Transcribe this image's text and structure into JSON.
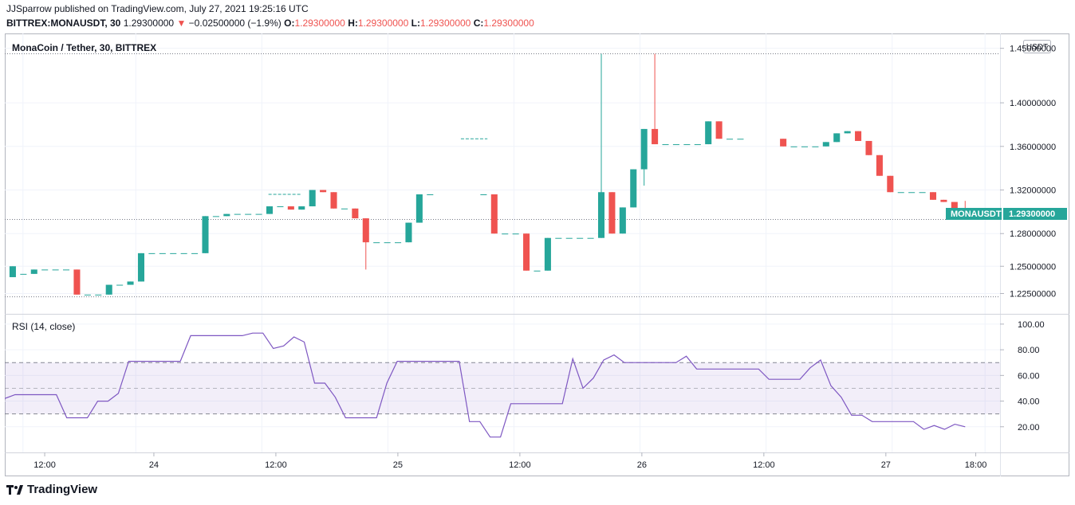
{
  "header": {
    "publisher_line": "JJSparrow published on TradingView.com, July 27, 2021 19:25:16 UTC",
    "symbol": "BITTREX:MONAUSDT, 30",
    "last": "1.29300000",
    "change_arrow": "▼",
    "change": "−0.02500000 (−1.9%)",
    "o_label": "O:",
    "o_value": "1.29300000",
    "h_label": "H:",
    "h_value": "1.29300000",
    "l_label": "L:",
    "l_value": "1.29300000",
    "c_label": "C:",
    "c_value": "1.29300000"
  },
  "chart_data": {
    "type": "candlestick",
    "title": "MonaCoin / Tether, 30, BITTREX",
    "currency": "USDT",
    "price_ticks": [
      "1.45000000",
      "1.40000000",
      "1.36000000",
      "1.32000000",
      "1.28000000",
      "1.25000000",
      "1.22500000"
    ],
    "price_tick_values": [
      1.45,
      1.4,
      1.36,
      1.32,
      1.28,
      1.25,
      1.225
    ],
    "price_range": [
      1.21,
      1.46
    ],
    "last_price_label": "MONAUSDT",
    "last_price": "1.29300000",
    "last_price_value": 1.293,
    "dotted_levels": [
      1.445,
      1.293,
      1.222
    ],
    "time_labels": [
      "12:00",
      "24",
      "12:00",
      "25",
      "12:00",
      "26",
      "12:00",
      "27",
      "18:00"
    ],
    "time_label_bars": [
      2,
      19,
      38,
      57,
      76,
      95,
      114,
      133,
      147
    ],
    "bars_total": 150,
    "candles": [
      {
        "i": 0,
        "o": 1.24,
        "c": 1.25,
        "h": 1.25,
        "l": 1.24
      },
      {
        "i": 1,
        "o": 1.243,
        "c": 1.243,
        "h": 1.243,
        "l": 1.243
      },
      {
        "i": 2,
        "o": 1.243,
        "c": 1.247,
        "h": 1.247,
        "l": 1.243
      },
      {
        "i": 3,
        "o": 1.247,
        "c": 1.247,
        "h": 1.247,
        "l": 1.247
      },
      {
        "i": 4,
        "o": 1.247,
        "c": 1.247,
        "h": 1.247,
        "l": 1.247
      },
      {
        "i": 5,
        "o": 1.247,
        "c": 1.247,
        "h": 1.247,
        "l": 1.247
      },
      {
        "i": 6,
        "o": 1.247,
        "c": 1.224,
        "h": 1.247,
        "l": 1.224
      },
      {
        "i": 7,
        "o": 1.224,
        "c": 1.224,
        "h": 1.224,
        "l": 1.224
      },
      {
        "i": 8,
        "o": 1.224,
        "c": 1.224,
        "h": 1.224,
        "l": 1.224
      },
      {
        "i": 9,
        "o": 1.224,
        "c": 1.233,
        "h": 1.233,
        "l": 1.224
      },
      {
        "i": 10,
        "o": 1.233,
        "c": 1.233,
        "h": 1.233,
        "l": 1.233
      },
      {
        "i": 11,
        "o": 1.233,
        "c": 1.236,
        "h": 1.236,
        "l": 1.233
      },
      {
        "i": 12,
        "o": 1.236,
        "c": 1.262,
        "h": 1.262,
        "l": 1.236
      },
      {
        "i": 13,
        "o": 1.262,
        "c": 1.262,
        "h": 1.262,
        "l": 1.262
      },
      {
        "i": 14,
        "o": 1.262,
        "c": 1.262,
        "h": 1.262,
        "l": 1.262
      },
      {
        "i": 15,
        "o": 1.262,
        "c": 1.262,
        "h": 1.262,
        "l": 1.262
      },
      {
        "i": 16,
        "o": 1.262,
        "c": 1.262,
        "h": 1.262,
        "l": 1.262
      },
      {
        "i": 17,
        "o": 1.262,
        "c": 1.262,
        "h": 1.262,
        "l": 1.262
      },
      {
        "i": 18,
        "o": 1.262,
        "c": 1.296,
        "h": 1.296,
        "l": 1.262
      },
      {
        "i": 19,
        "o": 1.296,
        "c": 1.296,
        "h": 1.296,
        "l": 1.296
      },
      {
        "i": 20,
        "o": 1.296,
        "c": 1.298,
        "h": 1.298,
        "l": 1.296
      },
      {
        "i": 21,
        "o": 1.298,
        "c": 1.298,
        "h": 1.298,
        "l": 1.298
      },
      {
        "i": 22,
        "o": 1.298,
        "c": 1.298,
        "h": 1.298,
        "l": 1.298
      },
      {
        "i": 23,
        "o": 1.298,
        "c": 1.298,
        "h": 1.298,
        "l": 1.298
      },
      {
        "i": 24,
        "o": 1.298,
        "c": 1.305,
        "h": 1.305,
        "l": 1.298
      },
      {
        "i": 25,
        "o": 1.305,
        "c": 1.305,
        "h": 1.305,
        "l": 1.305
      },
      {
        "i": 26,
        "o": 1.305,
        "c": 1.302,
        "h": 1.305,
        "l": 1.302
      },
      {
        "i": 27,
        "o": 1.302,
        "c": 1.305,
        "h": 1.305,
        "l": 1.302
      },
      {
        "i": 28,
        "o": 1.305,
        "c": 1.32,
        "h": 1.32,
        "l": 1.305
      },
      {
        "i": 29,
        "o": 1.32,
        "c": 1.318,
        "h": 1.32,
        "l": 1.318
      },
      {
        "i": 30,
        "o": 1.318,
        "c": 1.303,
        "h": 1.318,
        "l": 1.303
      },
      {
        "i": 31,
        "o": 1.303,
        "c": 1.303,
        "h": 1.303,
        "l": 1.303
      },
      {
        "i": 32,
        "o": 1.303,
        "c": 1.294,
        "h": 1.303,
        "l": 1.294
      },
      {
        "i": 33,
        "o": 1.294,
        "c": 1.272,
        "h": 1.294,
        "l": 1.247
      },
      {
        "i": 34,
        "o": 1.272,
        "c": 1.272,
        "h": 1.272,
        "l": 1.272
      },
      {
        "i": 35,
        "o": 1.272,
        "c": 1.272,
        "h": 1.272,
        "l": 1.272
      },
      {
        "i": 36,
        "o": 1.272,
        "c": 1.272,
        "h": 1.272,
        "l": 1.272
      },
      {
        "i": 37,
        "o": 1.272,
        "c": 1.29,
        "h": 1.29,
        "l": 1.272
      },
      {
        "i": 38,
        "o": 1.29,
        "c": 1.316,
        "h": 1.316,
        "l": 1.29
      },
      {
        "i": 39,
        "o": 1.316,
        "c": 1.316,
        "h": 1.316,
        "l": 1.316
      },
      {
        "i": 44,
        "o": 1.316,
        "c": 1.316,
        "h": 1.316,
        "l": 1.316
      },
      {
        "i": 45,
        "o": 1.316,
        "c": 1.28,
        "h": 1.316,
        "l": 1.28
      },
      {
        "i": 46,
        "o": 1.28,
        "c": 1.28,
        "h": 1.28,
        "l": 1.28
      },
      {
        "i": 47,
        "o": 1.28,
        "c": 1.28,
        "h": 1.28,
        "l": 1.28
      },
      {
        "i": 48,
        "o": 1.28,
        "c": 1.246,
        "h": 1.28,
        "l": 1.246
      },
      {
        "i": 49,
        "o": 1.246,
        "c": 1.246,
        "h": 1.246,
        "l": 1.246
      },
      {
        "i": 50,
        "o": 1.246,
        "c": 1.276,
        "h": 1.276,
        "l": 1.246
      },
      {
        "i": 51,
        "o": 1.276,
        "c": 1.276,
        "h": 1.276,
        "l": 1.276
      },
      {
        "i": 52,
        "o": 1.276,
        "c": 1.276,
        "h": 1.276,
        "l": 1.276
      },
      {
        "i": 53,
        "o": 1.276,
        "c": 1.276,
        "h": 1.276,
        "l": 1.276
      },
      {
        "i": 54,
        "o": 1.276,
        "c": 1.276,
        "h": 1.276,
        "l": 1.276
      },
      {
        "i": 55,
        "o": 1.276,
        "c": 1.318,
        "h": 1.445,
        "l": 1.276
      },
      {
        "i": 56,
        "o": 1.318,
        "c": 1.28,
        "h": 1.318,
        "l": 1.28
      },
      {
        "i": 57,
        "o": 1.28,
        "c": 1.304,
        "h": 1.304,
        "l": 1.28
      },
      {
        "i": 58,
        "o": 1.304,
        "c": 1.339,
        "h": 1.339,
        "l": 1.304
      },
      {
        "i": 59,
        "o": 1.339,
        "c": 1.376,
        "h": 1.376,
        "l": 1.324
      },
      {
        "i": 60,
        "o": 1.376,
        "c": 1.362,
        "h": 1.445,
        "l": 1.362
      },
      {
        "i": 61,
        "o": 1.362,
        "c": 1.362,
        "h": 1.362,
        "l": 1.362
      },
      {
        "i": 62,
        "o": 1.362,
        "c": 1.362,
        "h": 1.362,
        "l": 1.362
      },
      {
        "i": 63,
        "o": 1.362,
        "c": 1.362,
        "h": 1.362,
        "l": 1.362
      },
      {
        "i": 64,
        "o": 1.362,
        "c": 1.362,
        "h": 1.362,
        "l": 1.362
      },
      {
        "i": 65,
        "o": 1.362,
        "c": 1.383,
        "h": 1.383,
        "l": 1.362
      },
      {
        "i": 66,
        "o": 1.383,
        "c": 1.367,
        "h": 1.383,
        "l": 1.367
      },
      {
        "i": 67,
        "o": 1.367,
        "c": 1.367,
        "h": 1.367,
        "l": 1.367
      },
      {
        "i": 68,
        "o": 1.367,
        "c": 1.367,
        "h": 1.367,
        "l": 1.367
      },
      {
        "i": 72,
        "o": 1.367,
        "c": 1.36,
        "h": 1.367,
        "l": 1.36
      },
      {
        "i": 73,
        "o": 1.36,
        "c": 1.36,
        "h": 1.36,
        "l": 1.36
      },
      {
        "i": 74,
        "o": 1.36,
        "c": 1.36,
        "h": 1.36,
        "l": 1.36
      },
      {
        "i": 75,
        "o": 1.36,
        "c": 1.36,
        "h": 1.36,
        "l": 1.36
      },
      {
        "i": 76,
        "o": 1.36,
        "c": 1.364,
        "h": 1.364,
        "l": 1.36
      },
      {
        "i": 77,
        "o": 1.364,
        "c": 1.372,
        "h": 1.372,
        "l": 1.364
      },
      {
        "i": 78,
        "o": 1.372,
        "c": 1.374,
        "h": 1.374,
        "l": 1.372
      },
      {
        "i": 79,
        "o": 1.374,
        "c": 1.365,
        "h": 1.374,
        "l": 1.365
      },
      {
        "i": 80,
        "o": 1.365,
        "c": 1.352,
        "h": 1.365,
        "l": 1.352
      },
      {
        "i": 81,
        "o": 1.352,
        "c": 1.333,
        "h": 1.352,
        "l": 1.333
      },
      {
        "i": 82,
        "o": 1.333,
        "c": 1.318,
        "h": 1.333,
        "l": 1.318
      },
      {
        "i": 83,
        "o": 1.318,
        "c": 1.318,
        "h": 1.318,
        "l": 1.318
      },
      {
        "i": 84,
        "o": 1.318,
        "c": 1.318,
        "h": 1.318,
        "l": 1.318
      },
      {
        "i": 85,
        "o": 1.318,
        "c": 1.318,
        "h": 1.318,
        "l": 1.318
      },
      {
        "i": 86,
        "o": 1.318,
        "c": 1.311,
        "h": 1.318,
        "l": 1.311
      },
      {
        "i": 87,
        "o": 1.311,
        "c": 1.309,
        "h": 1.311,
        "l": 1.309
      },
      {
        "i": 88,
        "o": 1.309,
        "c": 1.302,
        "h": 1.309,
        "l": 1.302
      },
      {
        "i": 89,
        "o": 1.302,
        "c": 1.293,
        "h": 1.31,
        "l": 1.293
      }
    ],
    "rsi": {
      "label": "RSI (14, close)",
      "ticks": [
        "100.00",
        "80.00",
        "60.00",
        "40.00",
        "20.00"
      ],
      "tick_values": [
        100,
        80,
        60,
        40,
        20
      ],
      "range": [
        0,
        108
      ],
      "band_upper": 70,
      "band_lower": 30,
      "mid": 50,
      "values": [
        42,
        45,
        45,
        45,
        45,
        45,
        27,
        27,
        27,
        40,
        40,
        46,
        71,
        71,
        71,
        71,
        71,
        71,
        91,
        91,
        91,
        91,
        91,
        91,
        93,
        93,
        81,
        83,
        90,
        86,
        54,
        54,
        43,
        27,
        27,
        27,
        27,
        54,
        71,
        71,
        71,
        71,
        71,
        71,
        71,
        24,
        24,
        12,
        12,
        38,
        38,
        38,
        38,
        38,
        38,
        73,
        50,
        58,
        72,
        76,
        70,
        70,
        70,
        70,
        70,
        70,
        75,
        65,
        65,
        65,
        65,
        65,
        65,
        65,
        57,
        57,
        57,
        57,
        66,
        72,
        52,
        43,
        29,
        29,
        24,
        24,
        24,
        24,
        24,
        18,
        21,
        18,
        22,
        20
      ]
    }
  }
}
